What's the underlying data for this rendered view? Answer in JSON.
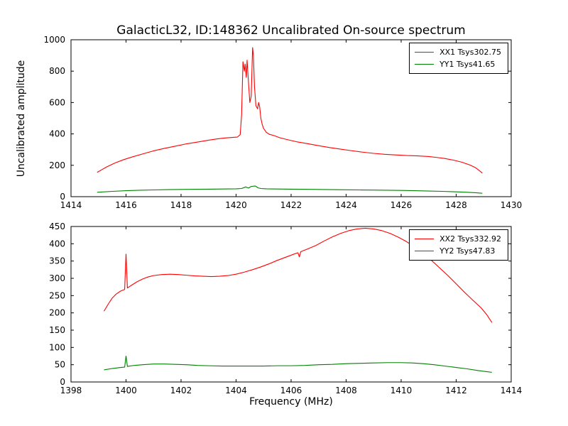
{
  "title": "GalacticL32, ID:148362 Uncalibrated On-source spectrum",
  "ylabel": "Uncalibrated amplitude",
  "xlabel": "Frequency (MHz)",
  "colors": {
    "xx_line": "#ff0000",
    "yy_line": "#008000",
    "frame": "#000000",
    "background": "#ffffff"
  },
  "chart_data": [
    {
      "type": "line",
      "subplot": "top",
      "xlim": [
        1414,
        1430
      ],
      "ylim": [
        0,
        1000
      ],
      "xticks": [
        1414,
        1416,
        1418,
        1420,
        1422,
        1424,
        1426,
        1428,
        1430
      ],
      "yticks": [
        0,
        200,
        400,
        600,
        800,
        1000
      ],
      "grid": false,
      "legend_position": "upper right",
      "series": [
        {
          "name": "XX1 Tsys302.75",
          "color": "#ff0000",
          "points": [
            [
              1414.95,
              155
            ],
            [
              1415.1,
              170
            ],
            [
              1415.3,
              190
            ],
            [
              1415.6,
              215
            ],
            [
              1415.9,
              235
            ],
            [
              1416.2,
              252
            ],
            [
              1416.6,
              272
            ],
            [
              1417.0,
              292
            ],
            [
              1417.4,
              308
            ],
            [
              1417.8,
              322
            ],
            [
              1418.2,
              337
            ],
            [
              1418.6,
              348
            ],
            [
              1419.0,
              360
            ],
            [
              1419.3,
              368
            ],
            [
              1419.6,
              374
            ],
            [
              1419.9,
              378
            ],
            [
              1420.05,
              380
            ],
            [
              1420.15,
              395
            ],
            [
              1420.2,
              520
            ],
            [
              1420.25,
              860
            ],
            [
              1420.3,
              800
            ],
            [
              1420.33,
              845
            ],
            [
              1420.37,
              760
            ],
            [
              1420.4,
              870
            ],
            [
              1420.45,
              730
            ],
            [
              1420.5,
              600
            ],
            [
              1420.55,
              640
            ],
            [
              1420.6,
              950
            ],
            [
              1420.63,
              900
            ],
            [
              1420.67,
              700
            ],
            [
              1420.72,
              580
            ],
            [
              1420.78,
              560
            ],
            [
              1420.82,
              600
            ],
            [
              1420.86,
              570
            ],
            [
              1420.9,
              500
            ],
            [
              1420.95,
              460
            ],
            [
              1421.0,
              435
            ],
            [
              1421.1,
              410
            ],
            [
              1421.2,
              398
            ],
            [
              1421.4,
              388
            ],
            [
              1421.6,
              375
            ],
            [
              1421.9,
              362
            ],
            [
              1422.2,
              350
            ],
            [
              1422.6,
              338
            ],
            [
              1423.0,
              325
            ],
            [
              1423.4,
              313
            ],
            [
              1423.8,
              303
            ],
            [
              1424.2,
              293
            ],
            [
              1424.6,
              284
            ],
            [
              1425.0,
              276
            ],
            [
              1425.4,
              270
            ],
            [
              1425.8,
              266
            ],
            [
              1426.2,
              262
            ],
            [
              1426.6,
              260
            ],
            [
              1427.0,
              256
            ],
            [
              1427.3,
              250
            ],
            [
              1427.6,
              243
            ],
            [
              1427.9,
              233
            ],
            [
              1428.2,
              220
            ],
            [
              1428.5,
              202
            ],
            [
              1428.7,
              185
            ],
            [
              1428.85,
              165
            ],
            [
              1428.95,
              150
            ]
          ]
        },
        {
          "name": "YY1 Tsys41.65",
          "color": "#008000",
          "points": [
            [
              1414.95,
              28
            ],
            [
              1415.5,
              34
            ],
            [
              1416.0,
              38
            ],
            [
              1416.5,
              41
            ],
            [
              1417.0,
              43
            ],
            [
              1417.5,
              45
            ],
            [
              1418.0,
              46
            ],
            [
              1418.5,
              47
            ],
            [
              1419.0,
              48
            ],
            [
              1419.5,
              49
            ],
            [
              1420.0,
              50
            ],
            [
              1420.2,
              52
            ],
            [
              1420.35,
              62
            ],
            [
              1420.45,
              55
            ],
            [
              1420.55,
              65
            ],
            [
              1420.7,
              68
            ],
            [
              1420.8,
              56
            ],
            [
              1420.9,
              52
            ],
            [
              1421.1,
              50
            ],
            [
              1421.5,
              49
            ],
            [
              1422.0,
              48
            ],
            [
              1422.5,
              47
            ],
            [
              1423.0,
              46
            ],
            [
              1423.5,
              45
            ],
            [
              1424.0,
              44
            ],
            [
              1424.5,
              43
            ],
            [
              1425.0,
              42
            ],
            [
              1425.5,
              41
            ],
            [
              1426.0,
              40
            ],
            [
              1426.5,
              38
            ],
            [
              1427.0,
              36
            ],
            [
              1427.5,
              34
            ],
            [
              1428.0,
              31
            ],
            [
              1428.4,
              28
            ],
            [
              1428.7,
              25
            ],
            [
              1428.95,
              22
            ]
          ]
        }
      ]
    },
    {
      "type": "line",
      "subplot": "bottom",
      "xlim": [
        1398,
        1414
      ],
      "ylim": [
        0,
        450
      ],
      "xticks": [
        1398,
        1400,
        1402,
        1404,
        1406,
        1408,
        1410,
        1412,
        1414
      ],
      "yticks": [
        0,
        50,
        100,
        150,
        200,
        250,
        300,
        350,
        400,
        450
      ],
      "grid": false,
      "legend_position": "upper right",
      "series": [
        {
          "name": "XX2 Tsys332.92",
          "color": "#ff0000",
          "points": [
            [
              1399.2,
              205
            ],
            [
              1399.35,
              225
            ],
            [
              1399.5,
              243
            ],
            [
              1399.65,
              255
            ],
            [
              1399.8,
              263
            ],
            [
              1399.95,
              268
            ],
            [
              1400.0,
              370
            ],
            [
              1400.05,
              272
            ],
            [
              1400.2,
              280
            ],
            [
              1400.4,
              290
            ],
            [
              1400.6,
              298
            ],
            [
              1400.8,
              304
            ],
            [
              1401.0,
              308
            ],
            [
              1401.3,
              311
            ],
            [
              1401.6,
              312
            ],
            [
              1401.9,
              311
            ],
            [
              1402.2,
              309
            ],
            [
              1402.5,
              307
            ],
            [
              1402.8,
              306
            ],
            [
              1403.1,
              305
            ],
            [
              1403.4,
              306
            ],
            [
              1403.7,
              308
            ],
            [
              1404.0,
              312
            ],
            [
              1404.3,
              318
            ],
            [
              1404.6,
              325
            ],
            [
              1404.9,
              333
            ],
            [
              1405.2,
              342
            ],
            [
              1405.5,
              352
            ],
            [
              1405.8,
              361
            ],
            [
              1406.1,
              370
            ],
            [
              1406.25,
              374
            ],
            [
              1406.3,
              362
            ],
            [
              1406.35,
              377
            ],
            [
              1406.6,
              385
            ],
            [
              1406.9,
              395
            ],
            [
              1407.2,
              408
            ],
            [
              1407.5,
              420
            ],
            [
              1407.8,
              430
            ],
            [
              1408.1,
              438
            ],
            [
              1408.4,
              443
            ],
            [
              1408.7,
              445
            ],
            [
              1409.0,
              443
            ],
            [
              1409.3,
              438
            ],
            [
              1409.6,
              430
            ],
            [
              1409.9,
              419
            ],
            [
              1410.2,
              406
            ],
            [
              1410.5,
              390
            ],
            [
              1410.8,
              372
            ],
            [
              1411.1,
              352
            ],
            [
              1411.4,
              330
            ],
            [
              1411.7,
              308
            ],
            [
              1412.0,
              284
            ],
            [
              1412.3,
              260
            ],
            [
              1412.6,
              237
            ],
            [
              1412.9,
              215
            ],
            [
              1413.1,
              196
            ],
            [
              1413.3,
              172
            ]
          ]
        },
        {
          "name": "YY2 Tsys47.83",
          "color": "#008000",
          "points": [
            [
              1399.2,
              35
            ],
            [
              1399.5,
              39
            ],
            [
              1399.8,
              42
            ],
            [
              1399.95,
              43
            ],
            [
              1400.0,
              75
            ],
            [
              1400.05,
              45
            ],
            [
              1400.3,
              48
            ],
            [
              1400.6,
              50
            ],
            [
              1401.0,
              52
            ],
            [
              1401.4,
              52
            ],
            [
              1401.8,
              51
            ],
            [
              1402.2,
              50
            ],
            [
              1402.6,
              48
            ],
            [
              1403.0,
              47
            ],
            [
              1403.5,
              46
            ],
            [
              1404.0,
              46
            ],
            [
              1404.5,
              46
            ],
            [
              1405.0,
              46
            ],
            [
              1405.5,
              47
            ],
            [
              1406.0,
              47
            ],
            [
              1406.5,
              48
            ],
            [
              1407.0,
              50
            ],
            [
              1407.5,
              51
            ],
            [
              1408.0,
              53
            ],
            [
              1408.5,
              54
            ],
            [
              1409.0,
              55
            ],
            [
              1409.5,
              56
            ],
            [
              1410.0,
              56
            ],
            [
              1410.4,
              55
            ],
            [
              1410.8,
              53
            ],
            [
              1411.2,
              50
            ],
            [
              1411.6,
              46
            ],
            [
              1412.0,
              42
            ],
            [
              1412.4,
              38
            ],
            [
              1412.8,
              33
            ],
            [
              1413.1,
              30
            ],
            [
              1413.3,
              28
            ]
          ]
        }
      ]
    }
  ]
}
